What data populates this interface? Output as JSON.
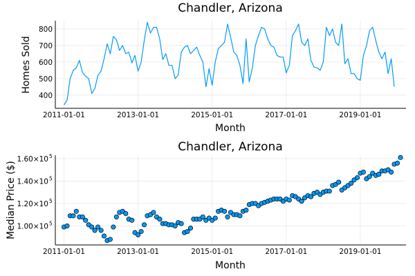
{
  "chart_data": [
    {
      "type": "line",
      "title": "Chandler, Arizona",
      "xlabel": "Month",
      "ylabel": "Homes Sold",
      "x_start": "2011-01",
      "x_step": "1 month",
      "x_tick_labels": [
        "2011-01-01",
        "2013-01-01",
        "2015-01-01",
        "2017-01-01",
        "2019-01-01"
      ],
      "y_ticks": [
        400,
        500,
        600,
        700,
        800
      ],
      "y_tick_labels": [
        "400",
        "500",
        "600",
        "700",
        "800"
      ],
      "ylim": [
        320,
        850
      ],
      "grid": true,
      "legend": "none",
      "series": [
        {
          "color": "#009AFA",
          "values": [
            340,
            370,
            500,
            550,
            565,
            610,
            535,
            515,
            500,
            410,
            440,
            520,
            545,
            620,
            710,
            650,
            755,
            735,
            670,
            700,
            650,
            660,
            595,
            640,
            545,
            600,
            730,
            840,
            775,
            810,
            810,
            740,
            615,
            650,
            580,
            580,
            500,
            520,
            660,
            690,
            700,
            650,
            670,
            690,
            640,
            600,
            450,
            560,
            460,
            600,
            680,
            700,
            720,
            830,
            750,
            660,
            640,
            580,
            470,
            740,
            480,
            560,
            700,
            760,
            810,
            800,
            740,
            700,
            690,
            640,
            630,
            630,
            535,
            580,
            760,
            790,
            830,
            720,
            700,
            740,
            610,
            570,
            565,
            550,
            600,
            810,
            760,
            800,
            720,
            700,
            830,
            590,
            620,
            530,
            530,
            500,
            490,
            640,
            700,
            790,
            810,
            730,
            660,
            620,
            660,
            530,
            620,
            450
          ]
        }
      ]
    },
    {
      "type": "scatter",
      "title": "Chandler, Arizona",
      "xlabel": "Month",
      "ylabel": "Median Price ($)",
      "x_start": "2011-01",
      "x_step": "1 month",
      "x_tick_labels": [
        "2011-01-01",
        "2013-01-01",
        "2015-01-01",
        "2017-01-01",
        "2019-01-01"
      ],
      "y_ticks": [
        100000,
        120000,
        140000,
        160000
      ],
      "y_tick_labels": [
        {
          "base": "1.00×10",
          "exp": "5"
        },
        {
          "base": "1.20×10",
          "exp": "5"
        },
        {
          "base": "1.40×10",
          "exp": "5"
        },
        {
          "base": "1.60×10",
          "exp": "5"
        }
      ],
      "ylim": [
        83000,
        163000
      ],
      "grid": true,
      "legend": "none",
      "series": [
        {
          "color": "#009AFA",
          "values": [
            99000,
            100000,
            109000,
            109000,
            113000,
            108000,
            108000,
            105000,
            101000,
            99000,
            96000,
            99000,
            96000,
            91000,
            87000,
            88000,
            99000,
            108000,
            112000,
            113000,
            111000,
            106000,
            105000,
            94000,
            92000,
            95000,
            101000,
            109000,
            110000,
            112000,
            108000,
            106000,
            102000,
            102000,
            101000,
            101000,
            100000,
            103000,
            102000,
            94000,
            95000,
            98000,
            106000,
            106000,
            106000,
            108000,
            105000,
            107000,
            105000,
            107000,
            113000,
            114000,
            113000,
            108000,
            112000,
            110000,
            110000,
            109000,
            113000,
            114000,
            119000,
            120000,
            120000,
            118000,
            120000,
            121000,
            122000,
            123000,
            124000,
            124000,
            124000,
            122000,
            124000,
            123000,
            127000,
            126000,
            124000,
            122000,
            125000,
            127000,
            126000,
            129000,
            130000,
            128000,
            130000,
            131000,
            131000,
            136000,
            137000,
            139000,
            132000,
            134000,
            136000,
            138000,
            141000,
            143000,
            147000,
            148000,
            142000,
            144000,
            147000,
            145000,
            146000,
            149000,
            149000,
            150000,
            148000,
            155000,
            156000,
            161000
          ]
        }
      ]
    }
  ]
}
